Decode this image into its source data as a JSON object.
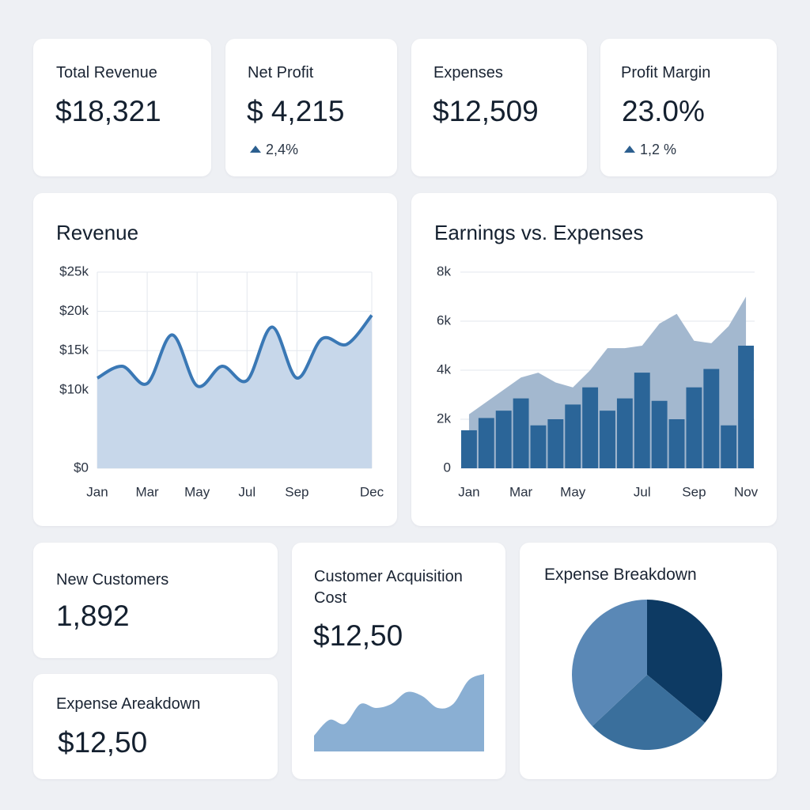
{
  "kpis": [
    {
      "label": "Total Revenue",
      "value": "$18,321"
    },
    {
      "label": "Net Profit",
      "value": "$ 4,215",
      "change": "2,4%"
    },
    {
      "label": "Expenses",
      "value": "$12,509"
    },
    {
      "label": "Profit Margin",
      "value": "23.0%",
      "change": "1,2 %"
    }
  ],
  "cards": [
    {
      "label": "New Customers",
      "value": "1,892"
    },
    {
      "label": "Expense Areakdown",
      "value": "$12,50"
    },
    {
      "label": "Customer Acquisition Cost",
      "value": "$12,50"
    }
  ],
  "chart_data": [
    {
      "type": "line",
      "title": "Revenue",
      "categories": [
        "Jan",
        null,
        "Mar",
        null,
        "May",
        null,
        "Jul",
        null,
        "Sep",
        null,
        null,
        "Dec"
      ],
      "values": [
        11500,
        13000,
        10800,
        17000,
        10500,
        13000,
        11200,
        18000,
        11500,
        16500,
        15800,
        19500
      ],
      "color": "#3a78b5",
      "fill": "#c7d7ea",
      "ylim": [
        0,
        25000
      ],
      "yticks": [
        {
          "value": 0,
          "label": "$0"
        },
        {
          "value": 10000,
          "label": "$10k"
        },
        {
          "value": 15000,
          "label": "$15k"
        },
        {
          "value": 20000,
          "label": "$20k"
        },
        {
          "value": 25000,
          "label": "$25k"
        }
      ],
      "grid": true
    },
    {
      "type": "bar",
      "title": "Earnings vs. Expenses",
      "categories": [
        "Jan",
        null,
        null,
        "Mar",
        null,
        null,
        "May",
        null,
        null,
        null,
        "Jul",
        null,
        null,
        "Sep",
        null,
        null,
        "Nov"
      ],
      "series": [
        {
          "type": "area",
          "color": "#a3b8cf",
          "values": [
            2200,
            2700,
            3200,
            3700,
            3900,
            3500,
            3300,
            4000,
            4900,
            4900,
            5000,
            5900,
            6300,
            5200,
            5100,
            5800,
            7000
          ]
        },
        {
          "type": "bar",
          "color": "#2b6598",
          "values": [
            1550,
            2050,
            2350,
            2850,
            1750,
            2000,
            2600,
            3300,
            2350,
            2850,
            3900,
            2750,
            2000,
            3300,
            4050,
            1750,
            5000
          ]
        }
      ],
      "ylim": [
        0,
        8000
      ],
      "yticks": [
        0,
        {
          "value": 2000,
          "label": "2k"
        },
        {
          "value": 4000,
          "label": "4k"
        },
        {
          "value": 6000,
          "label": "6k"
        },
        {
          "value": 8000,
          "label": "8k"
        }
      ],
      "grid": true
    },
    {
      "type": "area",
      "values": [
        20,
        40,
        35,
        60,
        55,
        60,
        75,
        70,
        55,
        60,
        90,
        98
      ],
      "ylim": [
        0,
        100
      ],
      "color": "#8aafd3"
    },
    {
      "type": "pie",
      "title": "Expense Breakdown",
      "values": [
        36,
        27,
        37
      ],
      "colors": [
        "#0d3a63",
        "#3a6f9c",
        "#5a88b6"
      ]
    }
  ]
}
